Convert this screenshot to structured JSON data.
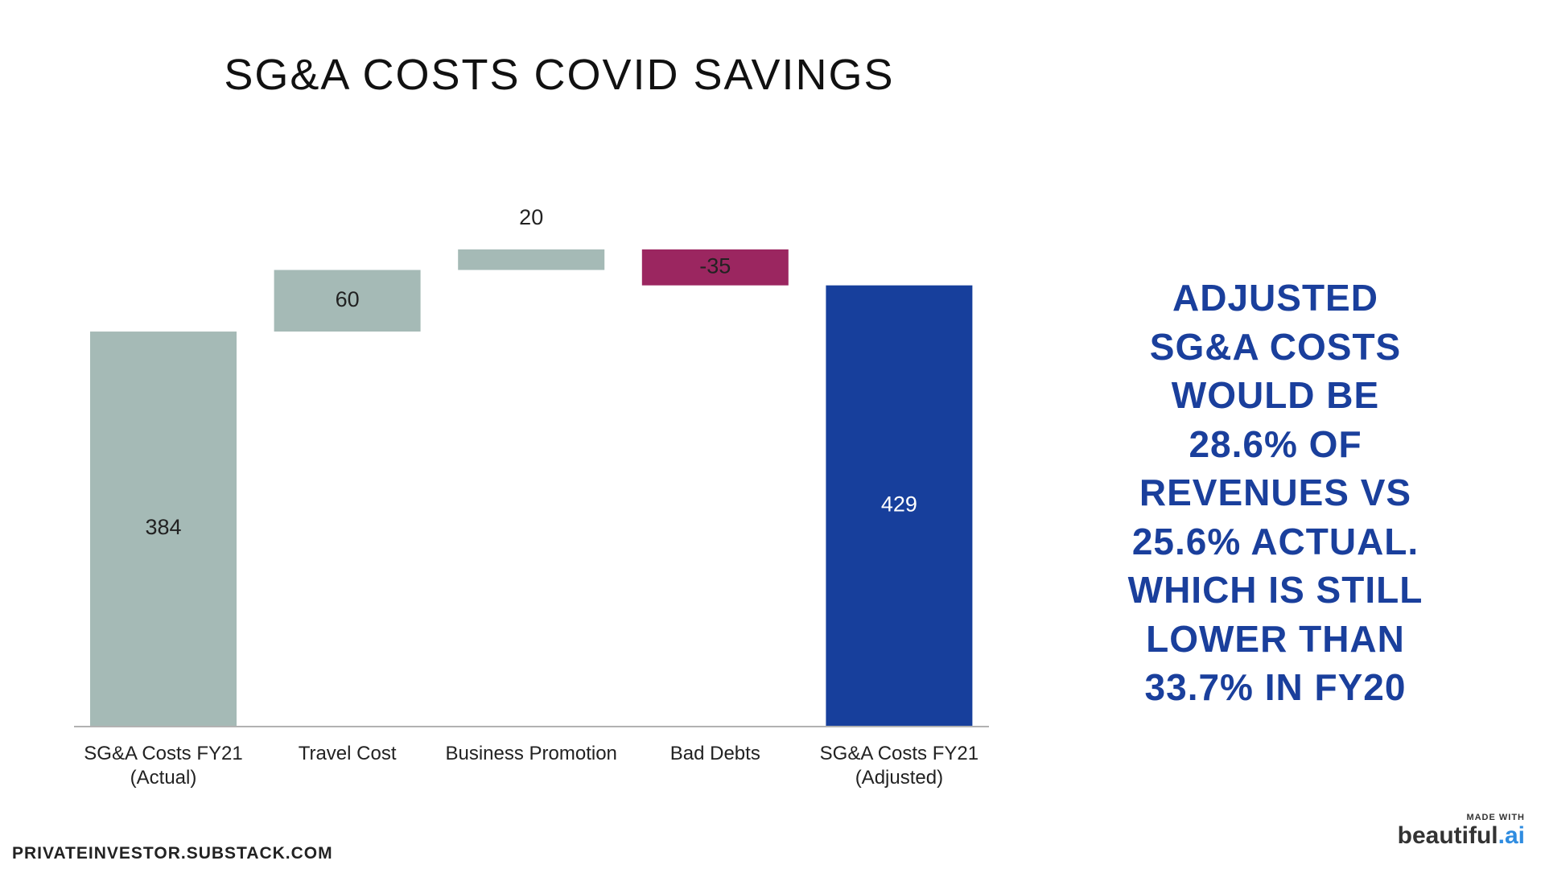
{
  "chart_data": {
    "type": "waterfall",
    "title": "SG&A COSTS COVID SAVINGS",
    "categories": [
      "SG&A Costs FY21 (Actual)",
      "Travel Cost",
      "Business Promotion",
      "Bad Debts",
      "SG&A Costs FY21 (Adjusted)"
    ],
    "values": [
      384,
      60,
      20,
      -35,
      429
    ],
    "totals": [
      true,
      false,
      false,
      false,
      true
    ],
    "colors": {
      "total_first": "#a5bab6",
      "increase": "#a5bab6",
      "decrease": "#9b2660",
      "total_last": "#173f9c"
    },
    "annotation_lines": [
      "ADJUSTED",
      "SG&A COSTS",
      "WOULD BE",
      "28.6% OF",
      "REVENUES VS",
      "25.6% ACTUAL.",
      "WHICH IS STILL",
      "LOWER THAN",
      "33.7% IN FY20"
    ]
  },
  "footer": {
    "source": "PRIVATEINVESTOR.SUBSTACK.COM",
    "made_with": "MADE WITH",
    "brand": "beautiful",
    "brand_suffix": ".ai"
  }
}
